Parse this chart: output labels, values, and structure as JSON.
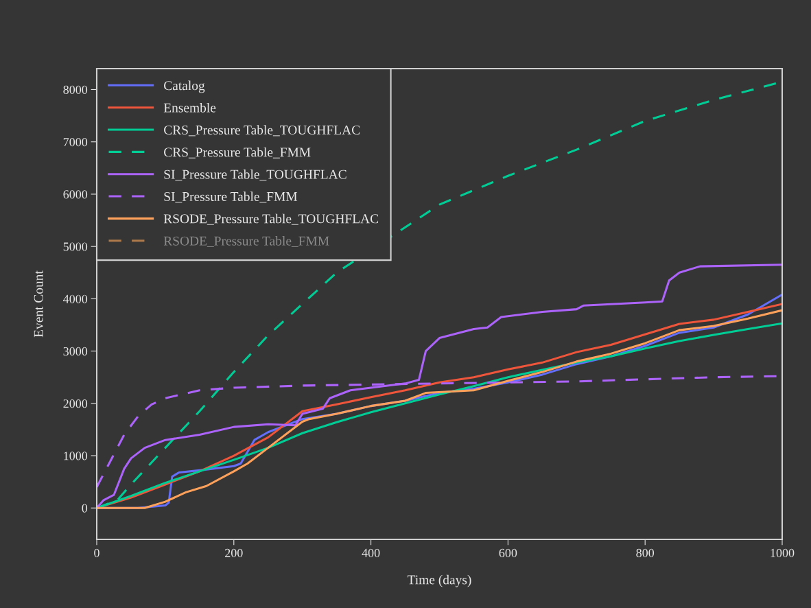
{
  "chart_data": {
    "type": "line",
    "xlabel": "Time (days)",
    "ylabel": "Event Count",
    "xlim": [
      0,
      1000
    ],
    "xticks": [
      0,
      200,
      400,
      600,
      800,
      1000
    ],
    "ylim": [
      -600,
      8400
    ],
    "yticks": [
      0,
      1000,
      2000,
      3000,
      4000,
      5000,
      6000,
      7000,
      8000
    ],
    "grid": false,
    "legend": "top left",
    "marker": "none",
    "series": [
      {
        "name": "Catalog",
        "color": "#636efa",
        "line_style": "solid",
        "x": [
          0,
          60,
          100,
          105,
          110,
          120,
          150,
          200,
          210,
          230,
          250,
          300,
          350,
          400,
          450,
          500,
          550,
          600,
          650,
          700,
          750,
          800,
          850,
          900,
          950,
          1000
        ],
        "values": [
          0,
          0,
          50,
          100,
          600,
          680,
          720,
          800,
          850,
          1300,
          1450,
          1700,
          1800,
          1950,
          2050,
          2200,
          2280,
          2400,
          2550,
          2750,
          2900,
          3100,
          3350,
          3450,
          3700,
          4080
        ]
      },
      {
        "name": "Ensemble",
        "color": "#ef553b",
        "line_style": "solid",
        "x": [
          0,
          50,
          100,
          150,
          200,
          250,
          300,
          350,
          400,
          450,
          500,
          550,
          600,
          650,
          700,
          750,
          800,
          850,
          900,
          950,
          1000
        ],
        "values": [
          0,
          200,
          450,
          700,
          1000,
          1350,
          1850,
          1980,
          2120,
          2250,
          2400,
          2500,
          2650,
          2780,
          2980,
          3120,
          3320,
          3520,
          3600,
          3750,
          3900
        ]
      },
      {
        "name": "CRS_Pressure Table_TOUGHFLAC",
        "color": "#00cc96",
        "line_style": "solid",
        "x": [
          0,
          50,
          100,
          150,
          200,
          250,
          300,
          350,
          400,
          450,
          500,
          550,
          600,
          650,
          700,
          750,
          800,
          850,
          900,
          950,
          1000
        ],
        "values": [
          0,
          230,
          480,
          700,
          920,
          1150,
          1430,
          1640,
          1830,
          2000,
          2170,
          2330,
          2500,
          2640,
          2780,
          2900,
          3050,
          3190,
          3310,
          3420,
          3530
        ]
      },
      {
        "name": "CRS_Pressure Table_FMM",
        "color": "#00cc96",
        "line_style": "dashed",
        "x": [
          0,
          30,
          50,
          100,
          150,
          200,
          250,
          300,
          350,
          500,
          600,
          700,
          800,
          900,
          1000
        ],
        "values": [
          0,
          150,
          450,
          1150,
          1850,
          2600,
          3300,
          3900,
          4500,
          5800,
          6350,
          6850,
          7400,
          7800,
          8150
        ]
      },
      {
        "name": "SI_Pressure Table_TOUGHFLAC",
        "color": "#ab63fa",
        "line_style": "solid",
        "x": [
          0,
          10,
          25,
          40,
          50,
          70,
          100,
          150,
          200,
          250,
          290,
          300,
          330,
          340,
          370,
          400,
          450,
          470,
          480,
          500,
          550,
          570,
          590,
          650,
          700,
          710,
          800,
          825,
          835,
          850,
          880,
          1000
        ],
        "values": [
          0,
          150,
          250,
          750,
          950,
          1150,
          1300,
          1400,
          1550,
          1600,
          1580,
          1800,
          1900,
          2100,
          2250,
          2300,
          2380,
          2450,
          3000,
          3250,
          3420,
          3450,
          3650,
          3750,
          3800,
          3870,
          3930,
          3950,
          4350,
          4500,
          4620,
          4650
        ]
      },
      {
        "name": "SI_Pressure Table_FMM",
        "color": "#ab63fa",
        "line_style": "dashed",
        "x": [
          0,
          20,
          40,
          60,
          80,
          100,
          150,
          200,
          300,
          400,
          500,
          600,
          700,
          800,
          900,
          1000
        ],
        "values": [
          400,
          900,
          1400,
          1750,
          1980,
          2100,
          2250,
          2300,
          2340,
          2360,
          2380,
          2400,
          2420,
          2460,
          2500,
          2520
        ]
      },
      {
        "name": "RSODE_Pressure Table_TOUGHFLAC",
        "color": "#ffa15a",
        "line_style": "solid",
        "x": [
          0,
          70,
          100,
          130,
          160,
          200,
          220,
          250,
          300,
          310,
          350,
          400,
          450,
          480,
          550,
          600,
          650,
          700,
          750,
          800,
          850,
          900,
          950,
          1000
        ],
        "values": [
          0,
          0,
          120,
          300,
          420,
          700,
          850,
          1150,
          1650,
          1700,
          1800,
          1950,
          2050,
          2200,
          2250,
          2430,
          2600,
          2800,
          2950,
          3150,
          3400,
          3480,
          3620,
          3780
        ]
      },
      {
        "name": "RSODE_Pressure Table_FMM",
        "color": "#b07a4a",
        "line_style": "dashed"
      }
    ]
  }
}
